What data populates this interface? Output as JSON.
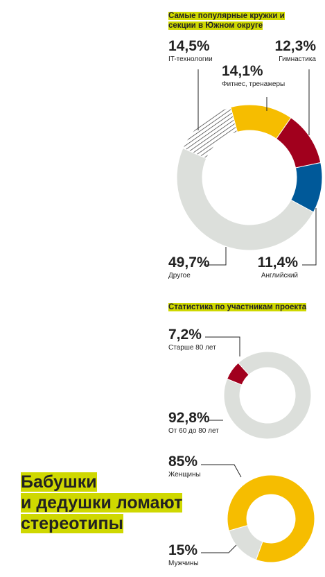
{
  "headline": [
    "Бабушки",
    "и дедушки ломают",
    "стереотипы"
  ],
  "chart_data": [
    {
      "type": "pie",
      "title": "Самые популярные кружки и секции в Южном округе",
      "categories": [
        "Фитнес, тренажеры",
        "Гимнастика",
        "Английский",
        "Другое",
        "IT-технологии"
      ],
      "values": [
        14.1,
        12.3,
        11.4,
        49.7,
        14.5
      ],
      "value_labels": [
        "14,1%",
        "12,3%",
        "11,4%",
        "49,7%",
        "14,5%"
      ],
      "colors": [
        "#f6bd00",
        "#a1001d",
        "#005999",
        "#dcdfdb",
        "hatched"
      ]
    },
    {
      "type": "pie",
      "title": "Статистика по участникам проекта",
      "categories": [
        "Старше 80 лет",
        "От 60 до 80 лет"
      ],
      "values": [
        7.2,
        92.8
      ],
      "value_labels": [
        "7,2%",
        "92,8%"
      ],
      "colors": [
        "#a1001d",
        "#dcdfdb"
      ]
    },
    {
      "type": "pie",
      "categories": [
        "Женщины",
        "Мужчины"
      ],
      "values": [
        85,
        15
      ],
      "value_labels": [
        "85%",
        "15%"
      ],
      "colors": [
        "#f6bd00",
        "#dcdfdb"
      ]
    }
  ]
}
